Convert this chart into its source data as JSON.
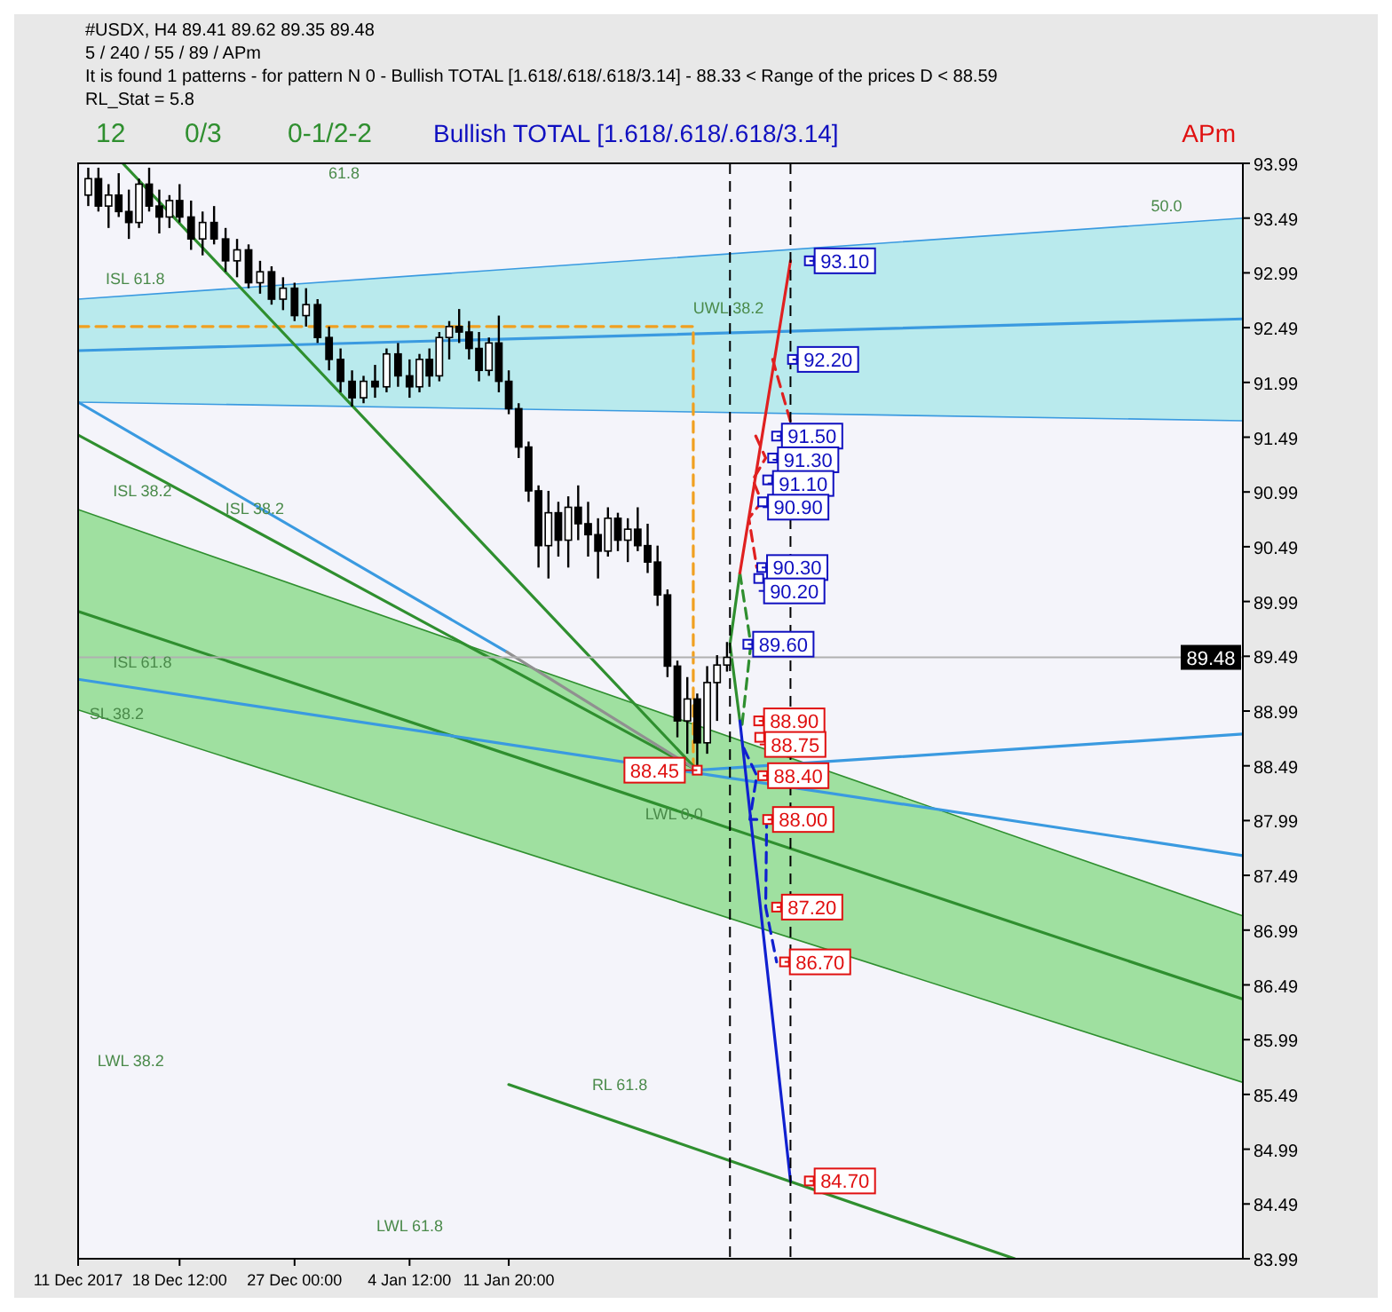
{
  "chart_data": {
    "type": "candlestick",
    "title": "#USDX, H4  89.41 89.62 89.35 89.48",
    "subtitle": "5 / 240 / 55 / 89 / APm",
    "color": "#000000",
    "x": [
      "2017-12-11T18:00",
      "2017-12-12T12:00",
      "2017-12-13T06:00",
      "2017-12-14T00:00",
      "2017-12-14T18:00",
      "2017-12-15T12:00",
      "2017-12-16T06:00",
      "2017-12-17T00:00",
      "2017-12-17T18:00",
      "2017-12-18T12:00",
      "2017-12-19T08:24",
      "2017-12-20T04:48",
      "2017-12-21T01:12",
      "2017-12-21T21:36",
      "2017-12-22T18:00",
      "2017-12-23T14:24",
      "2017-12-24T10:48",
      "2017-12-25T07:12",
      "2017-12-26T03:36",
      "2017-12-27T00:00",
      "2017-12-27T20:24",
      "2017-12-28T16:48",
      "2017-12-29T13:12",
      "2017-12-30T09:36",
      "2017-12-31T06:00",
      "2018-01-01T02:24",
      "2018-01-01T22:48",
      "2018-01-02T19:12",
      "2018-01-03T15:36",
      "2018-01-04T12:00",
      "2018-01-05T05:36",
      "2018-01-05T23:12",
      "2018-01-06T16:48",
      "2018-01-07T10:24",
      "2018-01-08T04:00",
      "2018-01-08T21:36",
      "2018-01-09T15:12",
      "2018-01-10T08:48",
      "2018-01-11T02:24",
      "2018-01-11T20:00",
      "2018-01-12T13:36",
      "2018-01-13T07:12",
      "2018-01-14T00:48",
      "2018-01-14T18:24",
      "2018-01-15T12:00",
      "2018-01-16T05:36",
      "2018-01-16T23:12",
      "2018-01-17T16:48",
      "2018-01-18T10:24",
      "2018-01-19T04:00",
      "2018-01-19T21:36",
      "2018-01-20T15:12",
      "2018-01-21T08:48",
      "2018-01-22T02:24",
      "2018-01-22T20:00",
      "2018-01-23T13:36",
      "2018-01-24T07:12",
      "2018-01-25T00:48",
      "2018-01-25T18:24",
      "2018-01-26T12:00",
      "2018-01-27T05:36",
      "2018-01-27T23:12"
    ],
    "ohlc": [
      [
        93.7,
        93.95,
        93.6,
        93.85
      ],
      [
        93.85,
        93.95,
        93.55,
        93.6
      ],
      [
        93.6,
        93.8,
        93.4,
        93.7
      ],
      [
        93.7,
        93.9,
        93.5,
        93.55
      ],
      [
        93.55,
        93.75,
        93.3,
        93.45
      ],
      [
        93.45,
        93.85,
        93.4,
        93.8
      ],
      [
        93.8,
        93.95,
        93.55,
        93.6
      ],
      [
        93.6,
        93.75,
        93.35,
        93.5
      ],
      [
        93.5,
        93.7,
        93.4,
        93.65
      ],
      [
        93.65,
        93.8,
        93.45,
        93.5
      ],
      [
        93.5,
        93.65,
        93.2,
        93.3
      ],
      [
        93.3,
        93.55,
        93.15,
        93.45
      ],
      [
        93.45,
        93.6,
        93.25,
        93.3
      ],
      [
        93.3,
        93.4,
        93.0,
        93.1
      ],
      [
        93.1,
        93.3,
        92.95,
        93.2
      ],
      [
        93.2,
        93.25,
        92.85,
        92.9
      ],
      [
        92.9,
        93.1,
        92.8,
        93.0
      ],
      [
        93.0,
        93.05,
        92.7,
        92.75
      ],
      [
        92.75,
        92.95,
        92.65,
        92.85
      ],
      [
        92.85,
        92.9,
        92.55,
        92.6
      ],
      [
        92.6,
        92.85,
        92.5,
        92.7
      ],
      [
        92.7,
        92.75,
        92.35,
        92.4
      ],
      [
        92.4,
        92.5,
        92.1,
        92.2
      ],
      [
        92.2,
        92.3,
        91.9,
        92.0
      ],
      [
        92.0,
        92.1,
        91.77,
        91.85
      ],
      [
        91.85,
        92.05,
        91.8,
        92.0
      ],
      [
        92.0,
        92.15,
        91.85,
        91.95
      ],
      [
        91.95,
        92.3,
        91.9,
        92.25
      ],
      [
        92.25,
        92.35,
        91.95,
        92.05
      ],
      [
        92.05,
        92.2,
        91.85,
        91.95
      ],
      [
        91.95,
        92.25,
        91.9,
        92.2
      ],
      [
        92.2,
        92.3,
        91.95,
        92.05
      ],
      [
        92.05,
        92.45,
        92.0,
        92.4
      ],
      [
        92.4,
        92.55,
        92.2,
        92.5
      ],
      [
        92.5,
        92.66,
        92.35,
        92.45
      ],
      [
        92.45,
        92.55,
        92.2,
        92.3
      ],
      [
        92.3,
        92.45,
        92.0,
        92.1
      ],
      [
        92.1,
        92.4,
        92.05,
        92.35
      ],
      [
        92.35,
        92.6,
        91.9,
        92.0
      ],
      [
        92.0,
        92.1,
        91.7,
        91.75
      ],
      [
        91.75,
        91.8,
        91.3,
        91.4
      ],
      [
        91.4,
        91.45,
        90.9,
        91.0
      ],
      [
        91.0,
        91.05,
        90.3,
        90.5
      ],
      [
        90.5,
        91.0,
        90.2,
        90.8
      ],
      [
        90.8,
        90.9,
        90.4,
        90.55
      ],
      [
        90.55,
        90.95,
        90.3,
        90.85
      ],
      [
        90.85,
        91.05,
        90.55,
        90.7
      ],
      [
        90.7,
        90.9,
        90.4,
        90.6
      ],
      [
        90.6,
        90.75,
        90.2,
        90.45
      ],
      [
        90.45,
        90.85,
        90.4,
        90.75
      ],
      [
        90.75,
        90.8,
        90.45,
        90.55
      ],
      [
        90.55,
        90.75,
        90.35,
        90.65
      ],
      [
        90.65,
        90.85,
        90.45,
        90.5
      ],
      [
        90.5,
        90.7,
        90.25,
        90.35
      ],
      [
        90.35,
        90.5,
        89.95,
        90.05
      ],
      [
        90.05,
        90.1,
        89.3,
        89.4
      ],
      [
        89.4,
        89.45,
        88.75,
        88.9
      ],
      [
        88.9,
        89.3,
        88.6,
        89.1
      ],
      [
        89.1,
        89.15,
        88.45,
        88.7
      ],
      [
        88.7,
        89.4,
        88.6,
        89.25
      ],
      [
        89.25,
        89.5,
        88.9,
        89.41
      ],
      [
        89.41,
        89.62,
        89.35,
        89.48
      ]
    ],
    "xlim": [
      "2017-12-11T00:00",
      "2018-03-07T02:24"
    ],
    "xticks": [
      {
        "value": "2017-12-11T00:00",
        "label": "11 Dec 2017"
      },
      {
        "value": "2017-12-18T12:00",
        "label": "18 Dec 12:00"
      },
      {
        "value": "2017-12-27T00:00",
        "label": "27 Dec 00:00"
      },
      {
        "value": "2018-01-04T12:00",
        "label": "4 Jan 12:00"
      },
      {
        "value": "2018-01-11T20:00",
        "label": "11 Jan 20:00"
      }
    ],
    "ylim": [
      83.99,
      93.99
    ],
    "yticks": [
      83.99,
      84.49,
      84.99,
      85.49,
      85.99,
      86.49,
      86.99,
      87.49,
      87.99,
      88.49,
      88.99,
      89.49,
      89.99,
      90.49,
      90.99,
      91.49,
      91.99,
      92.49,
      92.99,
      93.49,
      93.99
    ],
    "series": [
      {
        "type": "line",
        "color": "#3a9ae0",
        "x": [
          "2017-12-11T00:00",
          "2018-03-07T02:24"
        ],
        "values": [
          92.28,
          92.57
        ],
        "upper": [
          92.75,
          93.49
        ],
        "lower": [
          91.81,
          91.64
        ]
      },
      {
        "type": "line",
        "color": "#2f8f2f",
        "x": [
          "2017-12-11T00:00",
          "2018-03-07T02:24"
        ],
        "values": [
          89.9,
          86.36
        ],
        "upper": [
          90.83,
          87.12
        ],
        "lower": [
          89.0,
          85.6
        ]
      },
      {
        "type": "line",
        "color": "#f0a020",
        "line_style": "dashed",
        "x": [
          "2017-12-11T00:00",
          "2018-01-25T11:22",
          "2018-01-25T11:22"
        ],
        "values": [
          92.5,
          92.5,
          88.45
        ]
      },
      {
        "type": "line",
        "color": "#2f8f2f",
        "x": [
          "2017-12-14T07:12",
          "2018-01-25T18:24"
        ],
        "values": [
          93.99,
          88.45
        ]
      },
      {
        "type": "line",
        "color": "#2f8f2f",
        "x": [
          "2017-12-11T00:00",
          "2018-01-25T18:24"
        ],
        "values": [
          91.51,
          88.45
        ]
      },
      {
        "type": "line",
        "color": "#3a9ae0",
        "x": [
          "2017-12-11T00:00",
          "2018-01-11T16:29"
        ],
        "values": [
          91.81,
          89.53
        ]
      },
      {
        "type": "line",
        "color": "#909090",
        "x": [
          "2018-01-11T16:29",
          "2018-01-25T18:24"
        ],
        "values": [
          89.53,
          88.45
        ]
      },
      {
        "type": "line",
        "color": "#3a9ae0",
        "x": [
          "2017-12-11T00:00",
          "2018-03-07T02:24"
        ],
        "values": [
          89.28,
          87.67
        ]
      },
      {
        "type": "line",
        "color": "#3a9ae0",
        "x": [
          "2018-01-25T18:24",
          "2018-03-07T02:24"
        ],
        "values": [
          88.45,
          88.78
        ]
      },
      {
        "type": "line",
        "color": "#2f8f2f",
        "x": [
          "2018-01-11T20:00",
          "2018-02-18T05:36"
        ],
        "values": [
          85.58,
          83.99
        ]
      },
      {
        "type": "line",
        "color": "#2f8f2f",
        "x": [
          "2018-01-28T22:05",
          "2018-01-28T04:29",
          "2018-01-28T22:05"
        ],
        "values": [
          90.25,
          89.6,
          88.9
        ]
      },
      {
        "type": "line",
        "color": "#2f8f2f",
        "line_style": "dashed",
        "x": [
          "2018-01-28T22:05",
          "2018-01-29T17:26",
          "2018-01-29T01:36"
        ],
        "values": [
          90.25,
          89.6,
          88.85
        ]
      },
      {
        "type": "line",
        "color": "#e02020",
        "x": [
          "2018-01-28T22:05",
          "2018-02-01T15:50"
        ],
        "values": [
          90.25,
          93.1
        ]
      },
      {
        "type": "line",
        "color": "#e02020",
        "line_style": "dashed",
        "x": [
          "2018-01-31T08:10",
          "2018-02-01T15:50"
        ],
        "values": [
          92.2,
          91.63
        ]
      },
      {
        "type": "line",
        "color": "#e02020",
        "line_style": "dashed",
        "x": [
          "2018-01-30T02:14",
          "2018-01-30T19:50",
          "2018-01-29T20:58",
          "2018-01-30T12:48",
          "2018-01-29T13:55",
          "2018-01-30T04:00"
        ],
        "values": [
          91.5,
          91.3,
          91.1,
          90.9,
          90.75,
          90.3
        ]
      },
      {
        "type": "line",
        "color": "#1020d0",
        "x": [
          "2018-01-28T22:05",
          "2018-02-01T15:50"
        ],
        "values": [
          88.9,
          84.7
        ]
      },
      {
        "type": "line",
        "color": "#1020d0",
        "line_style": "dashed",
        "x": [
          "2018-01-29T05:07",
          "2018-01-30T04:00",
          "2018-01-29T15:41",
          "2018-01-30T21:36",
          "2018-01-30T19:50",
          "2018-01-31T15:12"
        ],
        "values": [
          88.65,
          88.4,
          88.0,
          88.0,
          87.2,
          86.7
        ]
      },
      {
        "type": "scatter",
        "color": "#1010c0",
        "marker": "square",
        "x": [
          "2018-02-03T01:17",
          "2018-02-01T19:22",
          "2018-01-31T15:12",
          "2018-01-31T08:10",
          "2018-01-30T23:22",
          "2018-01-30T14:34",
          "2018-01-30T12:48",
          "2018-01-30T07:31",
          "2018-01-29T12:10"
        ],
        "values": [
          93.1,
          92.2,
          91.5,
          91.3,
          91.1,
          90.9,
          90.3,
          90.2,
          89.6
        ],
        "value_labels": [
          "93.10",
          "92.20",
          "91.50",
          "91.30",
          "91.10",
          "90.90",
          "90.30",
          "90.20",
          "89.60"
        ]
      },
      {
        "type": "scatter",
        "color": "#e01010",
        "marker": "square",
        "x": [
          "2018-01-30T07:31",
          "2018-01-30T09:17",
          "2018-01-30T14:34",
          "2018-01-30T23:22",
          "2018-01-31T15:12",
          "2018-02-01T05:17",
          "2018-02-03T01:17",
          "2018-01-25T18:24"
        ],
        "values": [
          88.9,
          88.75,
          88.4,
          88.0,
          87.2,
          86.7,
          84.7,
          88.45
        ],
        "value_labels": [
          "88.90",
          "88.75",
          "88.40",
          "88.00",
          "87.20",
          "86.70",
          "84.70",
          "88.45"
        ]
      }
    ],
    "ref_lines": [
      {
        "axis": "x",
        "value": "2018-01-28T04:29",
        "color": "#000000",
        "line_style": "dashed"
      },
      {
        "axis": "x",
        "value": "2018-02-01T15:50",
        "color": "#000000",
        "line_style": "dashed"
      },
      {
        "axis": "y",
        "value": 89.48,
        "label": "89.48",
        "color": "#b0b0b0",
        "line_style": "solid"
      }
    ],
    "annotations": [
      "It is found 1 patterns  -  for pattern N 0 - Bullish TOTAL [1.618/.618/.618/3.14] - 88.33 < Range of the prices D < 88.59",
      "RL_Stat = 5.8",
      "12",
      "0/3",
      "0-1/2-2",
      "Bullish TOTAL [1.618/.618/.618/3.14]",
      "APm",
      "ISL 61.8",
      "ISL 38.2",
      "ISL 38.2",
      "ISL 61.8",
      "SL 38.2",
      "LWL 38.2",
      "LWL 61.8",
      "RL 61.8",
      "UWL 38.2",
      "LWL 0.0",
      "61.8",
      "50.0"
    ]
  }
}
